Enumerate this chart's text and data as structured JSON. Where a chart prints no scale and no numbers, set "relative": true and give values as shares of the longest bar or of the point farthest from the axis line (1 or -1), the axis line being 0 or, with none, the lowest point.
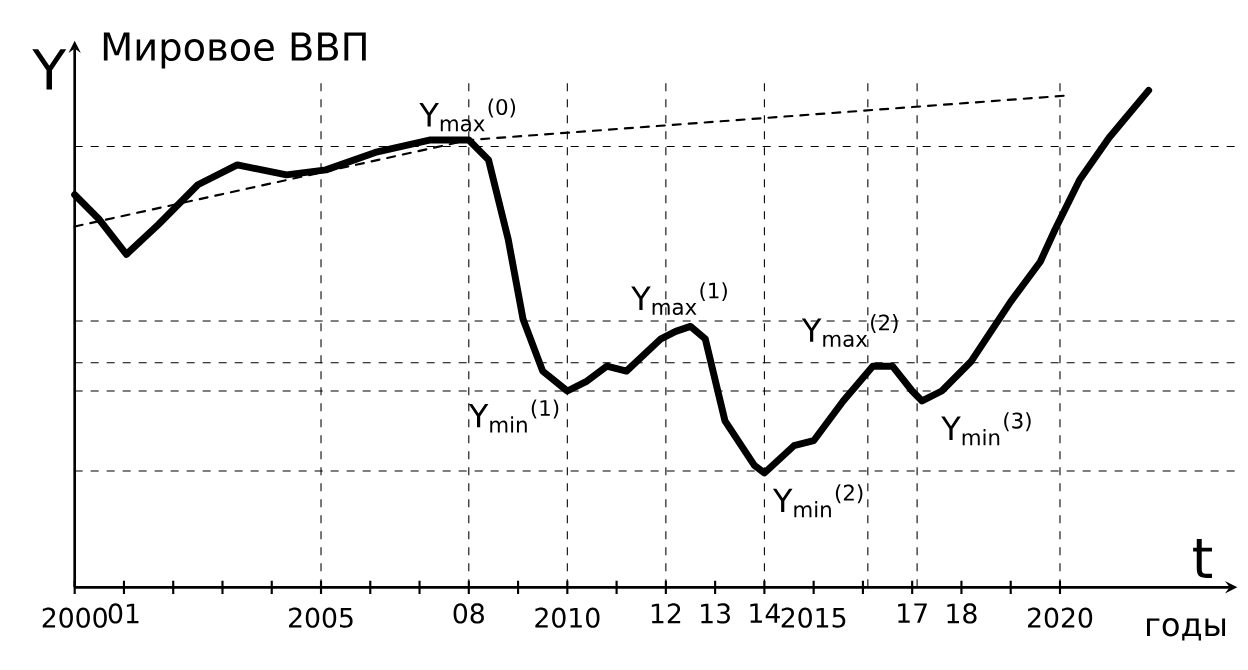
{
  "chart_data": {
    "type": "line",
    "title": "Мировое ВВП",
    "ylabel": "Y",
    "xlabel": "t",
    "relative": true,
    "xlim": [
      2000,
      2023.6
    ],
    "xticks": [
      2000,
      {
        "value": 2001,
        "label": "01"
      },
      {
        "value": 2002,
        "label": null
      },
      {
        "value": 2003,
        "label": null
      },
      {
        "value": 2004,
        "label": null
      },
      2005,
      {
        "value": 2006,
        "label": null
      },
      {
        "value": 2007,
        "label": null
      },
      {
        "value": 2008,
        "label": "08"
      },
      {
        "value": 2009,
        "label": null
      },
      2010,
      {
        "value": 2011,
        "label": null
      },
      {
        "value": 2012,
        "label": "12"
      },
      {
        "value": 2013,
        "label": "13"
      },
      {
        "value": 2014,
        "label": "14"
      },
      2015,
      {
        "value": 2016,
        "label": null
      },
      {
        "value": 2017,
        "label": "17"
      },
      {
        "value": 2018,
        "label": "18"
      },
      {
        "value": 2019,
        "label": null
      },
      2020
    ],
    "series": [
      {
        "color": "#000000",
        "line_style": "solid",
        "x": [
          2000,
          2000.5,
          2001.05,
          2001.7,
          2002.5,
          2003.3,
          2004.3,
          2005.1,
          2006.1,
          2007.2,
          2008.0,
          2008.4,
          2008.8,
          2009.1,
          2009.5,
          2010.0,
          2010.4,
          2010.8,
          2011.2,
          2011.9,
          2012.2,
          2012.5,
          2012.8,
          2013.2,
          2013.8,
          2014.0,
          2014.6,
          2015.0,
          2015.6,
          2016.2,
          2016.6,
          2017.0,
          2017.2,
          2017.6,
          2018.2,
          2019.0,
          2019.6,
          2019.9,
          2020.4,
          2021.0,
          2021.8
        ],
        "values": [
          0.79,
          0.74,
          0.67,
          0.73,
          0.81,
          0.85,
          0.83,
          0.84,
          0.875,
          0.9,
          0.9,
          0.86,
          0.7,
          0.54,
          0.435,
          0.395,
          0.415,
          0.445,
          0.435,
          0.5,
          0.515,
          0.525,
          0.5,
          0.335,
          0.245,
          0.23,
          0.285,
          0.295,
          0.375,
          0.445,
          0.445,
          0.395,
          0.375,
          0.395,
          0.455,
          0.575,
          0.655,
          0.72,
          0.82,
          0.905,
          1.0
        ]
      },
      {
        "color": "#000000",
        "line_style": "dashed",
        "x": [
          2000,
          2008,
          2020.2
        ],
        "values": [
          0.726,
          0.9,
          0.99
        ]
      }
    ],
    "ref_lines": [
      {
        "axis": "y",
        "value": 0.887,
        "color": "#000000",
        "line_style": "dashed"
      },
      {
        "axis": "y",
        "value": 0.536,
        "color": "#000000",
        "line_style": "dashed"
      },
      {
        "axis": "y",
        "value": 0.452,
        "color": "#000000",
        "line_style": "dashed"
      },
      {
        "axis": "y",
        "value": 0.395,
        "color": "#000000",
        "line_style": "dashed"
      },
      {
        "axis": "y",
        "value": 0.234,
        "color": "#000000",
        "line_style": "dashed"
      },
      {
        "axis": "x",
        "value": 2005,
        "color": "#000000",
        "line_style": "dashed"
      },
      {
        "axis": "x",
        "value": 2008,
        "color": "#000000",
        "line_style": "dashed"
      },
      {
        "axis": "x",
        "value": 2010,
        "color": "#000000",
        "line_style": "dashed"
      },
      {
        "axis": "x",
        "value": 2012,
        "color": "#000000",
        "line_style": "dashed"
      },
      {
        "axis": "x",
        "value": 2014,
        "color": "#000000",
        "line_style": "dashed"
      },
      {
        "axis": "x",
        "value": 2016.1,
        "color": "#000000",
        "line_style": "dashed"
      },
      {
        "axis": "x",
        "value": 2017.1,
        "color": "#000000",
        "line_style": "dashed"
      },
      {
        "axis": "x",
        "value": 2020,
        "color": "#000000",
        "line_style": "dashed"
      }
    ],
    "annotations": [
      {
        "text": "Y$_{max}$$^{(0)}$",
        "x": 2008,
        "y": 0.9
      },
      {
        "text": "Y$_{min}$$^{(1)}$",
        "x": 2010,
        "y": 0.395
      },
      {
        "text": "Y$_{max}$$^{(1)}$",
        "x": 2012.3,
        "y": 0.52
      },
      {
        "text": "Y$_{min}$$^{(2)}$",
        "x": 2014,
        "y": 0.23
      },
      {
        "text": "Y$_{max}$$^{(2)}$",
        "x": 2016.4,
        "y": 0.445
      },
      {
        "text": "Y$_{min}$$^{(3)}$",
        "x": 2017.2,
        "y": 0.375
      },
      "годы"
    ]
  }
}
